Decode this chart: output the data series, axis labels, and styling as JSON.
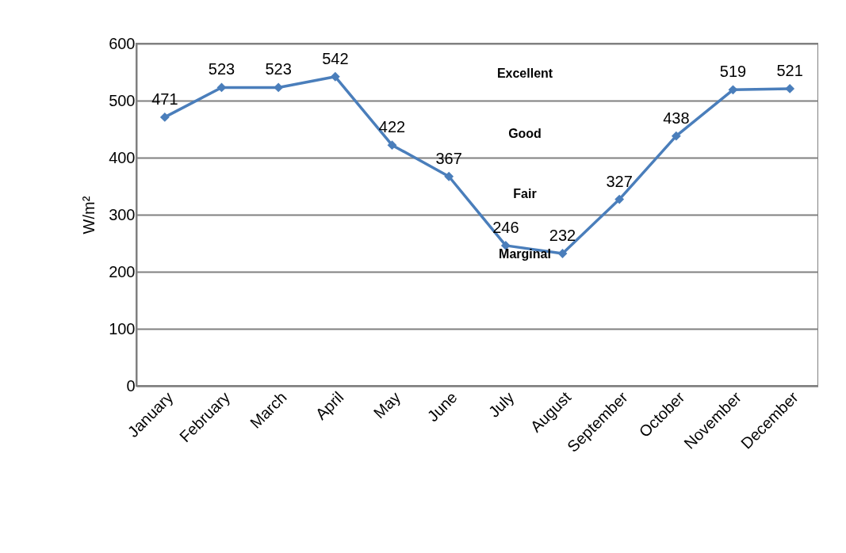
{
  "chart_data": {
    "type": "line",
    "ylabel": "W/m²",
    "categories": [
      "January",
      "February",
      "March",
      "April",
      "May",
      "June",
      "July",
      "August",
      "September",
      "October",
      "November",
      "December"
    ],
    "series": [
      {
        "color": "#4a7ebb",
        "values": [
          471,
          523,
          523,
          542,
          422,
          367,
          246,
          232,
          327,
          438,
          519,
          521
        ]
      }
    ],
    "ylim": [
      0,
      600
    ],
    "yticks": [
      0,
      100,
      200,
      300,
      400,
      500,
      600
    ],
    "grid": "y",
    "marker": "diamond",
    "data_labels": true,
    "annotations": [
      "Excellent",
      "Good",
      "Fair",
      "Marginal"
    ]
  }
}
